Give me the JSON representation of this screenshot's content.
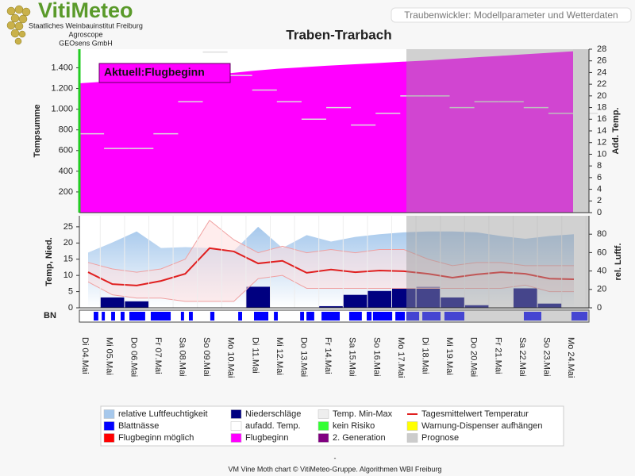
{
  "header": {
    "logo": "VitiMeteo",
    "lines": [
      "Staatliches Weinbauinstitut Freiburg",
      "Agroscope",
      "GEOsens GmbH"
    ],
    "app_title": "Traubenwickler: Modellparameter und Wetterdaten",
    "title": "Traben-Trarbach"
  },
  "chart_data": [
    {
      "type": "area",
      "ylabel": "Tempsumme",
      "y2label": "Add. Temp.",
      "annotation": "Aktuell:Flugbeginn",
      "ylim": [
        0,
        1580
      ],
      "yticks": [
        200,
        400,
        600,
        800,
        {
          "value": 1000,
          "label": "1.000"
        },
        {
          "value": 1200,
          "label": "1.200"
        },
        {
          "value": 1400,
          "label": "1.400"
        }
      ],
      "y2lim": [
        0,
        28
      ],
      "y2ticks": [
        0,
        2,
        4,
        6,
        8,
        10,
        12,
        14,
        16,
        18,
        20,
        22,
        24,
        26,
        28
      ],
      "series": [
        {
          "type": "area",
          "color": "#ff00ff",
          "values": [
            1250,
            1266,
            1281,
            1296,
            1312,
            1328,
            1345,
            1370,
            1390,
            1405,
            1420,
            1432,
            1445,
            1458,
            1470,
            1485,
            1500,
            1515,
            1530,
            1545,
            1560
          ]
        },
        {
          "type": "step",
          "axis": "y2",
          "color": "#dddddd",
          "values": [
            13.5,
            11,
            11,
            13.5,
            19,
            27.5,
            23.5,
            21,
            19,
            16,
            18,
            15,
            17,
            20,
            20,
            18,
            19,
            19,
            18,
            17,
            17
          ]
        }
      ]
    },
    {
      "type": "weather",
      "ylabel": "Temp, Nied.",
      "y2label": "rel. Luftf.",
      "strip_label": "BN",
      "categories": [
        "Di 04.Mai",
        "Mi 05.Mai",
        "Do 06.Mai",
        "Fr 07.Mai",
        "Sa 08.Mai",
        "So 09.Mai",
        "Mo 10.Mai",
        "Di 11.Mai",
        "Mi 12.Mai",
        "Do 13.Mai",
        "Fr 14.Mai",
        "Sa 15.Mai",
        "So 16.Mai",
        "Mo 17.Mai",
        "Di 18.Mai",
        "Mi 19.Mai",
        "Do 20.Mai",
        "Fr 21.Mai",
        "Sa 22.Mai",
        "So 23.Mai",
        "Mo 24.Mai"
      ],
      "ylim": [
        0,
        28.4
      ],
      "yticks": [
        0,
        5,
        10,
        15,
        20,
        25
      ],
      "y2lim": [
        0,
        100
      ],
      "y2ticks": [
        0,
        20,
        40,
        60,
        80
      ],
      "series": [
        {
          "type": "area",
          "axis": "y2",
          "color": "#a6c8ec",
          "values": [
            60,
            71,
            83,
            65,
            66,
            65,
            62,
            88,
            65,
            79,
            72,
            77,
            80,
            82,
            83,
            83,
            82,
            78,
            75,
            78,
            80
          ]
        },
        {
          "type": "bar",
          "color": "#000080",
          "values": [
            0,
            3.2,
            2,
            0.1,
            0,
            0,
            0,
            6.5,
            0,
            0,
            0.5,
            4,
            5.2,
            6,
            6.5,
            3.2,
            0.8,
            0,
            6,
            1.3,
            0
          ]
        },
        {
          "type": "band",
          "color": "#f0a0a0",
          "high": [
            14,
            12,
            11,
            12,
            15,
            27,
            21,
            17,
            19,
            17,
            18,
            17,
            18,
            18,
            15,
            13,
            14,
            14,
            13,
            13,
            13
          ],
          "low": [
            8,
            4,
            3,
            3,
            2,
            2,
            2,
            9,
            10,
            6,
            6,
            6,
            6,
            6,
            6,
            6,
            6,
            6,
            7,
            5,
            5
          ]
        },
        {
          "type": "line",
          "color": "#e02020",
          "values": [
            11,
            7.3,
            6.9,
            8.3,
            10.5,
            18.4,
            17.4,
            13.7,
            14.5,
            10.8,
            11.8,
            11,
            11.5,
            11.3,
            10.5,
            9.3,
            10.3,
            11,
            10.5,
            9,
            8.8
          ]
        },
        {
          "type": "strip",
          "color": "#0000ff",
          "intervals": [
            [
              0.23,
              0.42
            ],
            [
              0.56,
              0.69
            ],
            [
              0.95,
              1.11
            ],
            [
              1.34,
              1.5
            ],
            [
              1.7,
              2.35
            ],
            [
              2.58,
              3.4
            ],
            [
              3.82,
              3.95
            ],
            [
              4.15,
              4.31
            ],
            [
              5.03,
              5.2
            ],
            [
              6.18,
              6.34
            ],
            [
              6.83,
              7.42
            ],
            [
              7.65,
              7.81
            ],
            [
              8.73,
              8.89
            ],
            [
              8.99,
              9.31
            ],
            [
              9.61,
              10.36
            ],
            [
              10.75,
              11.27
            ],
            [
              11.47,
              11.67
            ],
            [
              11.73,
              12.52
            ],
            [
              12.65,
              13.04
            ],
            [
              13.1,
              13.63
            ],
            [
              13.76,
              14.51
            ],
            [
              14.67,
              15.49
            ],
            [
              17.94,
              18.66
            ],
            [
              19.9,
              20.56
            ]
          ]
        }
      ]
    }
  ],
  "legend": [
    {
      "name": "relative Luftfeuchtigkeit",
      "color": "#a6c8ec"
    },
    {
      "name": "Blattnässe",
      "color": "#0000ff"
    },
    {
      "name": "Flugbeginn möglich",
      "color": "#ff0000"
    },
    {
      "name": "Niederschläge",
      "color": "#000080"
    },
    {
      "name": "aufadd. Temp.",
      "color": "#ffffff"
    },
    {
      "name": "Flugbeginn",
      "color": "#ff00ff"
    },
    {
      "name": "Temp. Min-Max",
      "color": "#eeeeee"
    },
    {
      "name": "kein Risiko",
      "color": "#33ff33"
    },
    {
      "name": "2. Generation",
      "color": "#800080"
    },
    {
      "name": "Tagesmittelwert Temperatur",
      "color": "#e02020",
      "marker": "line"
    },
    {
      "name": "Warnung-Dispenser aufhängen",
      "color": "#ffff00"
    },
    {
      "name": "Prognose",
      "color": "#cccccc"
    }
  ],
  "footer": {
    "dash": "-",
    "credit": "VM Vine Moth chart © VitiMeteo-Gruppe. Algorithmen WBI Freiburg"
  }
}
